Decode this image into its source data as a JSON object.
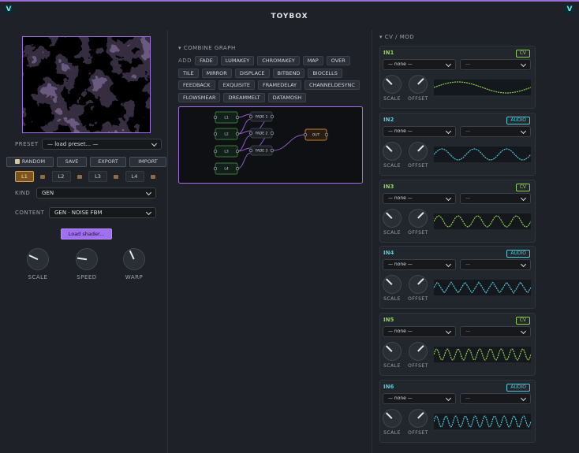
{
  "title": "TOYBOX",
  "left": {
    "preset_label": "PRESET",
    "preset_select": "— load preset... —",
    "buttons": [
      "RANDOM",
      "SAVE",
      "EXPORT",
      "IMPORT"
    ],
    "layers": [
      "L1",
      "L2",
      "L3",
      "L4"
    ],
    "kind_label": "KIND",
    "kind_select": "GEN",
    "content_label": "CONTENT",
    "content_select": "GEN · NOISE FBM",
    "load_button": "Load shader...",
    "knobs": [
      "SCALE",
      "SPEED",
      "WARP"
    ]
  },
  "graph": {
    "header": "▾ COMBINE GRAPH",
    "add_label": "ADD",
    "add_buttons": [
      "FADE",
      "LUMAKEY",
      "CHROMAKEY",
      "MAP",
      "OVER",
      "TILE",
      "MIRROR",
      "DISPLACE",
      "BITBEND",
      "BIOCELLS",
      "FEEDBACK",
      "EXQUISITE",
      "FRAMEDELAY",
      "CHANNELDESYNC",
      "FLOWSMEAR",
      "DREAMMELT",
      "DATAMOSH"
    ],
    "nodes": [
      "L1",
      "L2",
      "L3",
      "L4",
      "FADE 1",
      "FADE 2",
      "FADE 3",
      "OUT"
    ]
  },
  "cv": {
    "header": "▾ CV / MOD",
    "inputs": [
      {
        "name": "IN1",
        "tag": "CV",
        "source": "— none —",
        "target": "—",
        "knobs": [
          "SCALE",
          "OFFSET"
        ]
      },
      {
        "name": "IN2",
        "tag": "AUDIO",
        "source": "— none —",
        "target": "—",
        "knobs": [
          "SCALE",
          "OFFSET"
        ]
      },
      {
        "name": "IN3",
        "tag": "CV",
        "source": "— none —",
        "target": "—",
        "knobs": [
          "SCALE",
          "OFFSET"
        ]
      },
      {
        "name": "IN4",
        "tag": "AUDIO",
        "source": "— none —",
        "target": "—",
        "knobs": [
          "SCALE",
          "OFFSET"
        ]
      },
      {
        "name": "IN5",
        "tag": "CV",
        "source": "— none —",
        "target": "—",
        "knobs": [
          "SCALE",
          "OFFSET"
        ]
      },
      {
        "name": "IN6",
        "tag": "AUDIO",
        "source": "— none —",
        "target": "—",
        "knobs": [
          "SCALE",
          "OFFSET"
        ]
      }
    ]
  }
}
